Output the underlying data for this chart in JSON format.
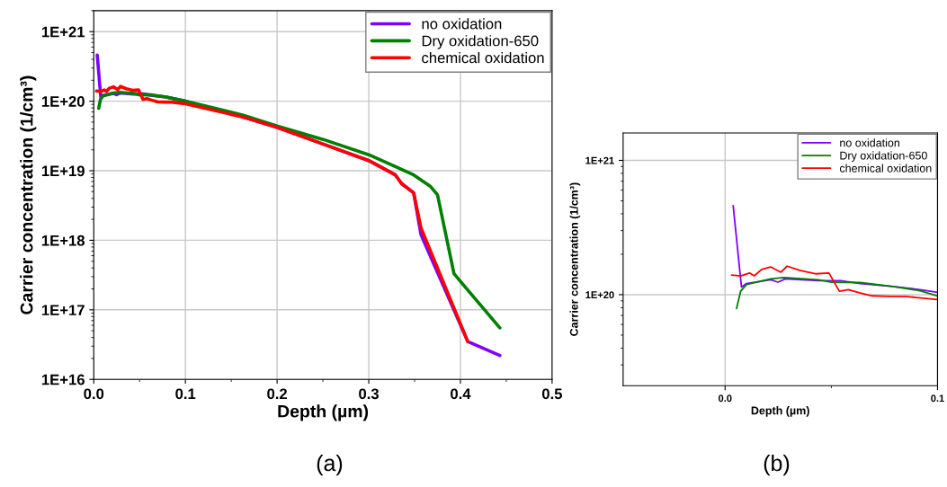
{
  "chart_data": [
    {
      "type": "line",
      "xlabel": "Depth (µm)",
      "ylabel": "Carrier concentration (1/cm³)",
      "log": "y",
      "grid": true,
      "legend": "top right",
      "xlim": [
        0,
        0.5
      ],
      "xticks": [
        {
          "value": 0,
          "label": "0.0"
        },
        0.1,
        0.2,
        0.3,
        0.4,
        0.5
      ],
      "ylim": [
        1e+16,
        2e+21
      ],
      "yticks": [
        {
          "value": 1e+16,
          "label": "1E+16"
        },
        {
          "value": 1e+17,
          "label": "1E+17"
        },
        {
          "value": 1e+18,
          "label": "1E+18"
        },
        {
          "value": 1e+19,
          "label": "1E+19"
        },
        {
          "value": 1e+20,
          "label": "1E+20"
        },
        {
          "value": 1e+21,
          "label": "1E+21"
        }
      ],
      "annotations": [
        "(a)"
      ],
      "series": [
        {
          "name": "no oxidation",
          "color": "#8000ff",
          "x": [
            0.0038,
            0.0077,
            0.0101,
            0.0214,
            0.0249,
            0.0284,
            0.0439,
            0.0545,
            0.0637,
            0.0791,
            0.1,
            0.163,
            0.2,
            0.251,
            0.3,
            0.329,
            0.336,
            0.349,
            0.357,
            0.408,
            0.443
          ],
          "values": [
            4.6e+20,
            1.14e+20,
            1.21e+20,
            1.29e+20,
            1.24e+20,
            1.31e+20,
            1.27e+20,
            1.27e+20,
            1.21e+20,
            1.15e+20,
            1e+20,
            5.9e+19,
            4.2e+19,
            2.4e+19,
            1.4e+19,
            8.7e+18,
            6.5e+18,
            4.8e+18,
            1.2e+18,
            3.5e+16,
            2.2e+16
          ]
        },
        {
          "name": "Dry oxidation-650",
          "color": "#008000",
          "x": [
            0.0054,
            0.0073,
            0.0101,
            0.0214,
            0.0277,
            0.0439,
            0.0496,
            0.0637,
            0.0791,
            0.1,
            0.163,
            0.2,
            0.251,
            0.3,
            0.329,
            0.349,
            0.367,
            0.375,
            0.393,
            0.443
          ],
          "values": [
            7.9e+19,
            1.06e+20,
            1.19e+20,
            1.31e+20,
            1.34e+20,
            1.29e+20,
            1.24e+20,
            1.23e+20,
            1.15e+20,
            1e+20,
            6.3e+19,
            4.4e+19,
            2.8e+19,
            1.7e+19,
            1.15e+19,
            8.7e+18,
            6e+18,
            4.5e+18,
            3.3e+17,
            5.5e+16
          ]
        },
        {
          "name": "chemical oxidation",
          "color": "#ff0000",
          "x": [
            0.0031,
            0.0073,
            0.0115,
            0.0137,
            0.0172,
            0.0214,
            0.0263,
            0.0292,
            0.0355,
            0.0425,
            0.0489,
            0.0538,
            0.058,
            0.0637,
            0.0693,
            0.0777,
            0.0848,
            0.1,
            0.163,
            0.2,
            0.251,
            0.3,
            0.329,
            0.336,
            0.349,
            0.357,
            0.408
          ],
          "values": [
            1.4e+20,
            1.38e+20,
            1.45e+20,
            1.38e+20,
            1.54e+20,
            1.61e+20,
            1.47e+20,
            1.63e+20,
            1.51e+20,
            1.43e+20,
            1.45e+20,
            1.06e+20,
            1.09e+20,
            1.03e+20,
            9.8e+19,
            9.7e+19,
            9.7e+19,
            9.2e+19,
            5.9e+19,
            4.2e+19,
            2.4e+19,
            1.4e+19,
            8.7e+18,
            6.5e+18,
            4.8e+18,
            1.5e+18,
            3.5e+16
          ]
        }
      ]
    },
    {
      "type": "line",
      "xlabel": "Depth (µm)",
      "ylabel": "Carrier concentration (1/cm³)",
      "log": "y",
      "grid": true,
      "legend": "top right",
      "xlim": [
        -0.048,
        0.1
      ],
      "xticks": [
        {
          "value": 0,
          "label": "0.0"
        },
        0.1
      ],
      "ylim": [
        2.1e+19,
        1.6e+21
      ],
      "yticks": [
        {
          "value": 1e+20,
          "label": "1E+20"
        },
        {
          "value": 1e+21,
          "label": "1E+21"
        }
      ],
      "annotations": [
        "(b)"
      ],
      "series": [
        {
          "name": "no oxidation",
          "color": "#8000ff",
          "x": [
            0.0038,
            0.0077,
            0.0101,
            0.0214,
            0.0249,
            0.0284,
            0.0439,
            0.0545,
            0.0637,
            0.0791,
            0.0918,
            0.1
          ],
          "values": [
            4.6e+20,
            1.14e+20,
            1.21e+20,
            1.29e+20,
            1.24e+20,
            1.31e+20,
            1.27e+20,
            1.27e+20,
            1.21e+20,
            1.15e+20,
            1.09e+20,
            1.04e+20
          ]
        },
        {
          "name": "Dry oxidation-650",
          "color": "#008000",
          "x": [
            0.0054,
            0.0073,
            0.0101,
            0.0214,
            0.0277,
            0.0439,
            0.0496,
            0.0637,
            0.0791,
            0.0918,
            0.1
          ],
          "values": [
            7.9e+19,
            1.06e+20,
            1.19e+20,
            1.31e+20,
            1.34e+20,
            1.29e+20,
            1.24e+20,
            1.23e+20,
            1.15e+20,
            1.07e+20,
            9.8e+19
          ]
        },
        {
          "name": "chemical oxidation",
          "color": "#ff0000",
          "x": [
            0.0031,
            0.0073,
            0.0115,
            0.0137,
            0.0172,
            0.0214,
            0.0263,
            0.0292,
            0.0355,
            0.0425,
            0.0489,
            0.0538,
            0.058,
            0.0637,
            0.0693,
            0.0777,
            0.0848,
            0.1
          ],
          "values": [
            1.4e+20,
            1.38e+20,
            1.45e+20,
            1.38e+20,
            1.54e+20,
            1.61e+20,
            1.47e+20,
            1.63e+20,
            1.51e+20,
            1.43e+20,
            1.45e+20,
            1.06e+20,
            1.09e+20,
            1.03e+20,
            9.8e+19,
            9.7e+19,
            9.7e+19,
            9.2e+19
          ]
        }
      ]
    }
  ]
}
